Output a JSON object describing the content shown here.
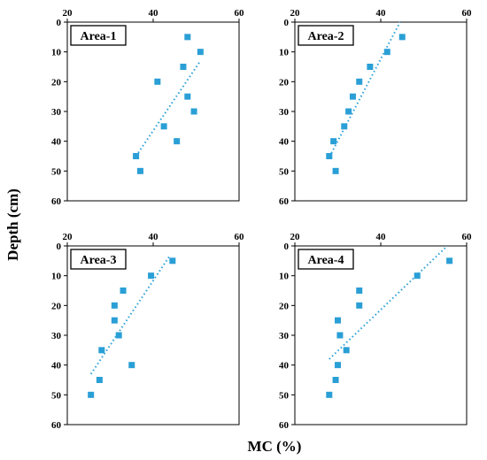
{
  "figure": {
    "xlabel": "MC  (%)",
    "ylabel": "Depth (cm)"
  },
  "chart_data": [
    {
      "type": "scatter",
      "title": "Area-1",
      "xlim": [
        20,
        60
      ],
      "ylim": [
        0,
        60
      ],
      "x_ticks": [
        "20",
        "40",
        "60"
      ],
      "y_ticks": [
        "0",
        "10",
        "20",
        "30",
        "40",
        "50",
        "60"
      ],
      "y_inverted": true,
      "marker_color": "#2A9FD6",
      "points": [
        {
          "x": 48,
          "y": 5
        },
        {
          "x": 51,
          "y": 10
        },
        {
          "x": 47,
          "y": 15
        },
        {
          "x": 41,
          "y": 20
        },
        {
          "x": 48,
          "y": 25
        },
        {
          "x": 49.5,
          "y": 30
        },
        {
          "x": 42.5,
          "y": 35
        },
        {
          "x": 45.5,
          "y": 40
        },
        {
          "x": 36,
          "y": 45
        },
        {
          "x": 37,
          "y": 50
        }
      ],
      "trendline": [
        {
          "x": 36,
          "y": 45
        },
        {
          "x": 51,
          "y": 13
        }
      ]
    },
    {
      "type": "scatter",
      "title": "Area-2",
      "xlim": [
        20,
        60
      ],
      "ylim": [
        0,
        60
      ],
      "x_ticks": [
        "20",
        "40",
        "60"
      ],
      "y_ticks": [
        "0",
        "10",
        "20",
        "30",
        "40",
        "50",
        "60"
      ],
      "y_inverted": true,
      "marker_color": "#2A9FD6",
      "points": [
        {
          "x": 45,
          "y": 5
        },
        {
          "x": 41.5,
          "y": 10
        },
        {
          "x": 37.5,
          "y": 15
        },
        {
          "x": 35,
          "y": 20
        },
        {
          "x": 33.5,
          "y": 25
        },
        {
          "x": 32.5,
          "y": 30
        },
        {
          "x": 31.5,
          "y": 35
        },
        {
          "x": 29,
          "y": 40
        },
        {
          "x": 28,
          "y": 45
        },
        {
          "x": 29.5,
          "y": 50
        }
      ],
      "trendline": [
        {
          "x": 28.5,
          "y": 44
        },
        {
          "x": 44.5,
          "y": 0
        }
      ]
    },
    {
      "type": "scatter",
      "title": "Area-3",
      "xlim": [
        20,
        60
      ],
      "ylim": [
        0,
        60
      ],
      "x_ticks": [
        "20",
        "40",
        "60"
      ],
      "y_ticks": [
        "0",
        "10",
        "20",
        "30",
        "40",
        "50",
        "60"
      ],
      "y_inverted": true,
      "marker_color": "#2A9FD6",
      "points": [
        {
          "x": 44.5,
          "y": 5
        },
        {
          "x": 39.5,
          "y": 10
        },
        {
          "x": 33,
          "y": 15
        },
        {
          "x": 31,
          "y": 20
        },
        {
          "x": 31,
          "y": 25
        },
        {
          "x": 32,
          "y": 30
        },
        {
          "x": 28,
          "y": 35
        },
        {
          "x": 35,
          "y": 40
        },
        {
          "x": 27.5,
          "y": 45
        },
        {
          "x": 25.5,
          "y": 50
        }
      ],
      "trendline": [
        {
          "x": 25.5,
          "y": 43
        },
        {
          "x": 44,
          "y": 3
        }
      ]
    },
    {
      "type": "scatter",
      "title": "Area-4",
      "xlim": [
        20,
        60
      ],
      "ylim": [
        0,
        60
      ],
      "x_ticks": [
        "20",
        "40",
        "60"
      ],
      "y_ticks": [
        "0",
        "10",
        "20",
        "30",
        "40",
        "50",
        "60"
      ],
      "y_inverted": true,
      "marker_color": "#2A9FD6",
      "points": [
        {
          "x": 56,
          "y": 5
        },
        {
          "x": 48.5,
          "y": 10
        },
        {
          "x": 35,
          "y": 15
        },
        {
          "x": 35,
          "y": 20
        },
        {
          "x": 30,
          "y": 25
        },
        {
          "x": 30.5,
          "y": 30
        },
        {
          "x": 32,
          "y": 35
        },
        {
          "x": 30,
          "y": 40
        },
        {
          "x": 29.5,
          "y": 45
        },
        {
          "x": 28,
          "y": 50
        }
      ],
      "trendline": [
        {
          "x": 28,
          "y": 38
        },
        {
          "x": 55.5,
          "y": 0
        }
      ]
    }
  ]
}
